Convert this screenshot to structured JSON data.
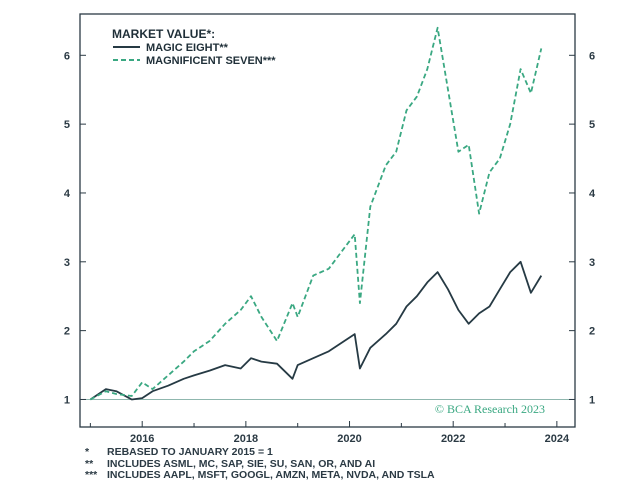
{
  "chart_data": {
    "type": "line",
    "legend_title": "MARKET VALUE*:",
    "legend_position": "top-left",
    "credit": "© BCA Research 2023",
    "xlim": [
      2014.8,
      2024.35
    ],
    "ylim": [
      0.6,
      6.6
    ],
    "x_ticks": [
      "2016",
      "2018",
      "2020",
      "2022",
      "2024"
    ],
    "y_ticks": [
      "1",
      "2",
      "3",
      "4",
      "5",
      "6"
    ],
    "baseline_value": 1,
    "colors": {
      "magic_eight": "#263a44",
      "magnificent_seven": "#3aa882",
      "baseline": "#8fb7ae",
      "frame": "#2b3a44"
    },
    "series": [
      {
        "name": "MAGIC EIGHT**",
        "style": "solid",
        "x": [
          2015.0,
          2015.3,
          2015.5,
          2015.8,
          2016.0,
          2016.2,
          2016.5,
          2016.8,
          2017.0,
          2017.3,
          2017.6,
          2017.9,
          2018.1,
          2018.3,
          2018.6,
          2018.9,
          2019.0,
          2019.3,
          2019.6,
          2019.9,
          2020.1,
          2020.2,
          2020.4,
          2020.7,
          2020.9,
          2021.1,
          2021.3,
          2021.5,
          2021.7,
          2021.9,
          2022.1,
          2022.3,
          2022.5,
          2022.7,
          2022.9,
          2023.1,
          2023.3,
          2023.5,
          2023.7
        ],
        "values": [
          1.0,
          1.15,
          1.12,
          1.0,
          1.02,
          1.12,
          1.2,
          1.3,
          1.35,
          1.42,
          1.5,
          1.45,
          1.6,
          1.55,
          1.52,
          1.3,
          1.5,
          1.6,
          1.7,
          1.85,
          1.95,
          1.45,
          1.75,
          1.95,
          2.1,
          2.35,
          2.5,
          2.7,
          2.85,
          2.6,
          2.3,
          2.1,
          2.25,
          2.35,
          2.6,
          2.85,
          3.0,
          2.55,
          2.8
        ]
      },
      {
        "name": "MAGNIFICENT SEVEN***",
        "style": "dashed",
        "x": [
          2015.0,
          2015.3,
          2015.5,
          2015.8,
          2016.0,
          2016.2,
          2016.5,
          2016.8,
          2017.0,
          2017.3,
          2017.6,
          2017.9,
          2018.1,
          2018.3,
          2018.6,
          2018.9,
          2019.0,
          2019.3,
          2019.6,
          2019.9,
          2020.1,
          2020.2,
          2020.4,
          2020.7,
          2020.9,
          2021.1,
          2021.3,
          2021.5,
          2021.7,
          2021.9,
          2022.1,
          2022.3,
          2022.5,
          2022.7,
          2022.9,
          2023.1,
          2023.3,
          2023.5,
          2023.7
        ],
        "values": [
          1.0,
          1.12,
          1.08,
          1.05,
          1.25,
          1.15,
          1.35,
          1.55,
          1.7,
          1.85,
          2.1,
          2.3,
          2.5,
          2.2,
          1.85,
          2.4,
          2.2,
          2.8,
          2.9,
          3.2,
          3.4,
          2.4,
          3.8,
          4.4,
          4.6,
          5.2,
          5.4,
          5.8,
          6.4,
          5.5,
          4.6,
          4.7,
          3.7,
          4.3,
          4.5,
          5.0,
          5.8,
          5.45,
          6.1
        ]
      }
    ]
  },
  "footnotes": [
    {
      "mark": "*",
      "text": "REBASED TO JANUARY 2015 = 1"
    },
    {
      "mark": "**",
      "text": "INCLUDES ASML, MC, SAP, SIE, SU, SAN, OR, AND AI"
    },
    {
      "mark": "***",
      "text": "INCLUDES AAPL, MSFT, GOOGL, AMZN, META, NVDA, AND TSLA"
    }
  ]
}
